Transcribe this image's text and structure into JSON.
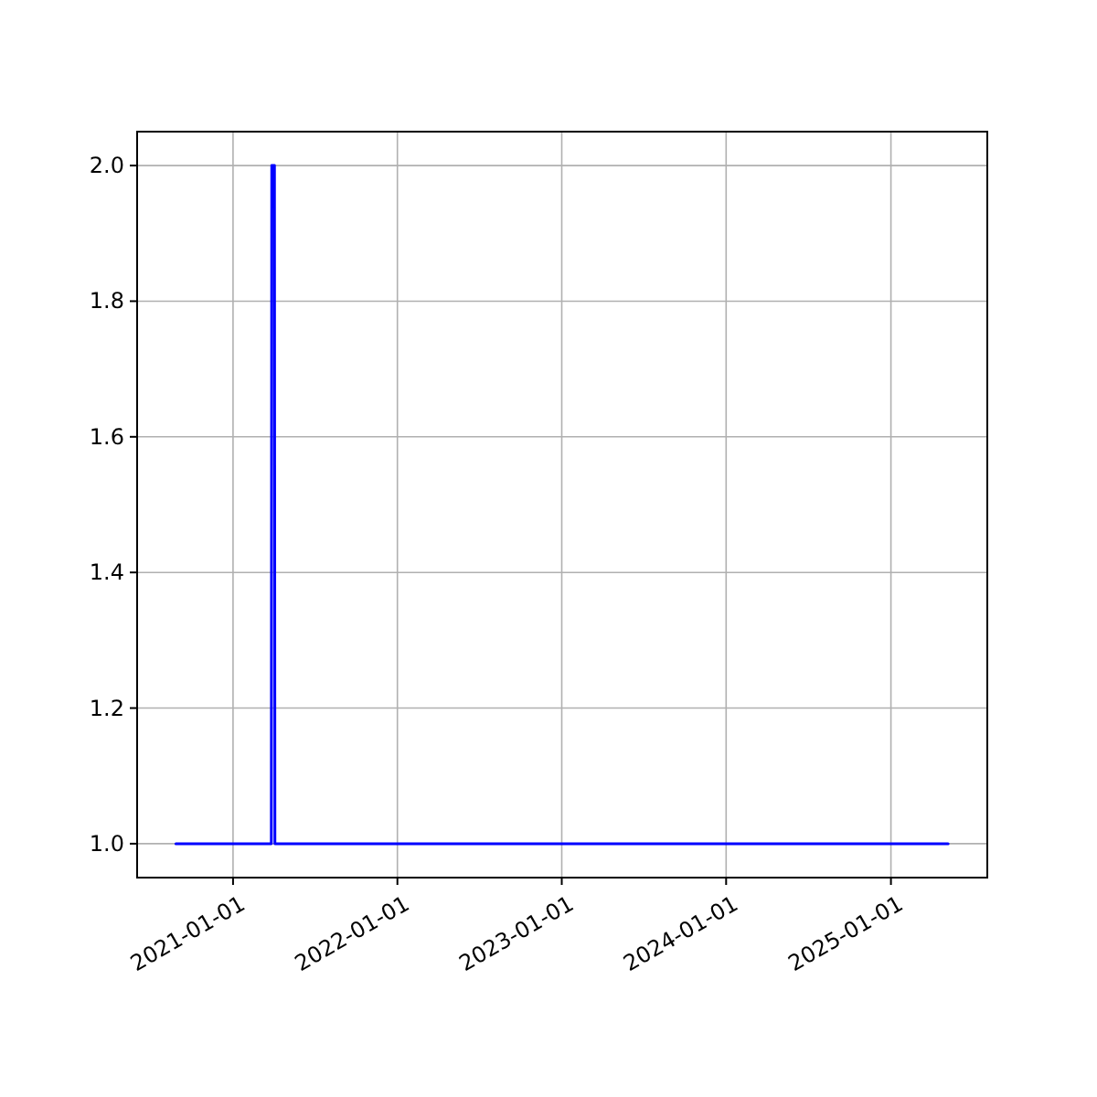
{
  "chart_data": {
    "type": "line",
    "x": [
      "2020-08-27",
      "2021-03-27",
      "2021-03-28",
      "2021-04-03",
      "2021-04-04",
      "2025-05-08"
    ],
    "series": [
      {
        "color": "#0000ff",
        "values": [
          1,
          1,
          2,
          2,
          1,
          1
        ]
      }
    ],
    "xlim": [
      "2020-06-02",
      "2025-08-03"
    ],
    "xticks": [
      {
        "value": "2021-01-01",
        "label": "2021-01-01"
      },
      {
        "value": "2022-01-01",
        "label": "2022-01-01"
      },
      {
        "value": "2023-01-01",
        "label": "2023-01-01"
      },
      {
        "value": "2024-01-01",
        "label": "2024-01-01"
      },
      {
        "value": "2025-01-01",
        "label": "2025-01-01"
      }
    ],
    "ylim": [
      0.95,
      2.05
    ],
    "yticks": [
      {
        "value": 1,
        "label": "1.0"
      },
      {
        "value": 1.2,
        "label": "1.2"
      },
      {
        "value": 1.4,
        "label": "1.4"
      },
      {
        "value": 1.6,
        "label": "1.6"
      },
      {
        "value": 1.8,
        "label": "1.8"
      },
      {
        "value": 2,
        "label": "2.0"
      }
    ],
    "grid": true,
    "line_style": "solid",
    "marker": "none"
  }
}
